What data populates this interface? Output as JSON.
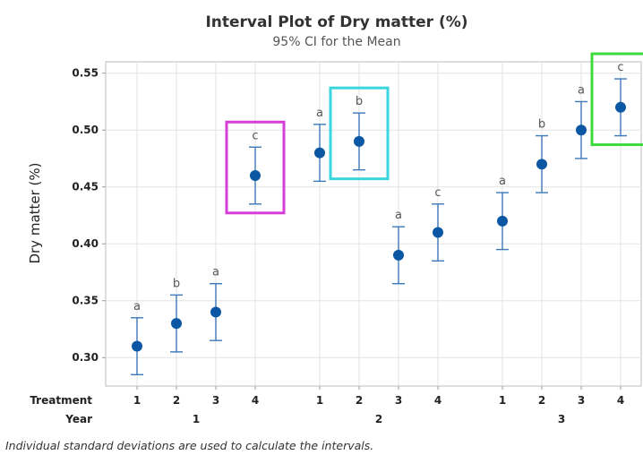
{
  "chart_data": {
    "type": "scatter",
    "title": "Interval Plot of Dry matter (%)",
    "subtitle": "95% CI for the Mean",
    "ylabel": "Dry matter (%)",
    "ylim": [
      0.275,
      0.56
    ],
    "yticks": [
      0.3,
      0.35,
      0.4,
      0.45,
      0.5,
      0.55
    ],
    "ytick_labels": [
      "0.30",
      "0.35",
      "0.40",
      "0.45",
      "0.50",
      "0.55"
    ],
    "grid": true,
    "x_rows": [
      {
        "label": "Treatment",
        "values": [
          "1",
          "2",
          "3",
          "4",
          "1",
          "2",
          "3",
          "4",
          "1",
          "2",
          "3",
          "4"
        ]
      },
      {
        "label": "Year",
        "groups": [
          "1",
          "2",
          "3"
        ]
      }
    ],
    "points": [
      {
        "year": "1",
        "treatment": "1",
        "mean": 0.31,
        "lower": 0.285,
        "upper": 0.335,
        "letter": "a"
      },
      {
        "year": "1",
        "treatment": "2",
        "mean": 0.33,
        "lower": 0.305,
        "upper": 0.355,
        "letter": "b"
      },
      {
        "year": "1",
        "treatment": "3",
        "mean": 0.34,
        "lower": 0.315,
        "upper": 0.365,
        "letter": "a"
      },
      {
        "year": "1",
        "treatment": "4",
        "mean": 0.46,
        "lower": 0.435,
        "upper": 0.485,
        "letter": "c"
      },
      {
        "year": "2",
        "treatment": "1",
        "mean": 0.48,
        "lower": 0.455,
        "upper": 0.505,
        "letter": "a"
      },
      {
        "year": "2",
        "treatment": "2",
        "mean": 0.49,
        "lower": 0.465,
        "upper": 0.515,
        "letter": "b"
      },
      {
        "year": "2",
        "treatment": "3",
        "mean": 0.39,
        "lower": 0.365,
        "upper": 0.415,
        "letter": "a"
      },
      {
        "year": "2",
        "treatment": "4",
        "mean": 0.41,
        "lower": 0.385,
        "upper": 0.435,
        "letter": "c"
      },
      {
        "year": "3",
        "treatment": "1",
        "mean": 0.42,
        "lower": 0.395,
        "upper": 0.445,
        "letter": "a"
      },
      {
        "year": "3",
        "treatment": "2",
        "mean": 0.47,
        "lower": 0.445,
        "upper": 0.495,
        "letter": "b"
      },
      {
        "year": "3",
        "treatment": "3",
        "mean": 0.5,
        "lower": 0.475,
        "upper": 0.525,
        "letter": "a"
      },
      {
        "year": "3",
        "treatment": "4",
        "mean": 0.52,
        "lower": 0.495,
        "upper": 0.545,
        "letter": "c"
      }
    ],
    "highlights": [
      {
        "point_index": 3,
        "color": "#d63fd6"
      },
      {
        "point_index": 5,
        "color": "#3ad6e0"
      },
      {
        "point_index": 11,
        "color": "#3cdc3c"
      }
    ],
    "marker_color": "#0b57a4",
    "errorbar_color": "#3d78b8",
    "footnote": "Individual standard deviations are used to calculate the intervals."
  }
}
